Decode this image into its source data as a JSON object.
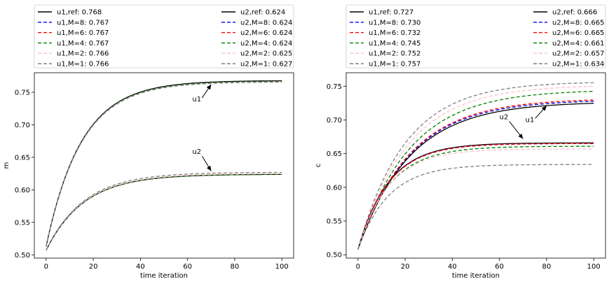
{
  "chart_data": [
    {
      "type": "line",
      "panel": "left",
      "title": "",
      "xlabel": "time iteration",
      "ylabel": "m",
      "xlim": [
        -5,
        105
      ],
      "ylim": [
        0.495,
        0.78
      ],
      "xticks": [
        0,
        20,
        40,
        60,
        80,
        100
      ],
      "yticks": [
        0.5,
        0.55,
        0.6,
        0.65,
        0.7,
        0.75
      ],
      "ytick_labels": [
        "0.50",
        "0.55",
        "0.60",
        "0.65",
        "0.70",
        "0.75"
      ],
      "legend_placement": "above",
      "series": [
        {
          "name": "u1,ref",
          "legend": "u1,ref: 0.768",
          "color": "#000000",
          "dash": "solid",
          "start": 0.513,
          "final": 0.768,
          "tau": 15
        },
        {
          "name": "u1,M=8",
          "legend": "u1,M=8: 0.767",
          "color": "#0000ff",
          "dash": "dashed",
          "start": 0.513,
          "final": 0.767,
          "tau": 15
        },
        {
          "name": "u1,M=6",
          "legend": "u1,M=6: 0.767",
          "color": "#ff0000",
          "dash": "dashed",
          "start": 0.513,
          "final": 0.767,
          "tau": 15
        },
        {
          "name": "u1,M=4",
          "legend": "u1,M=4: 0.767",
          "color": "#008000",
          "dash": "dashed",
          "start": 0.513,
          "final": 0.767,
          "tau": 15
        },
        {
          "name": "u1,M=2",
          "legend": "u1,M=2: 0.766",
          "color": "#ffc0cb",
          "dash": "dashed",
          "start": 0.513,
          "final": 0.766,
          "tau": 15
        },
        {
          "name": "u1,M=1",
          "legend": "u1,M=1: 0.766",
          "color": "#808080",
          "dash": "dashed",
          "start": 0.513,
          "final": 0.766,
          "tau": 15
        },
        {
          "name": "u2,ref",
          "legend": "u2,ref: 0.624",
          "color": "#000000",
          "dash": "solid",
          "start": 0.507,
          "final": 0.624,
          "tau": 16
        },
        {
          "name": "u2,M=8",
          "legend": "u2,M=8: 0.624",
          "color": "#0000ff",
          "dash": "dashed",
          "start": 0.507,
          "final": 0.624,
          "tau": 16
        },
        {
          "name": "u2,M=6",
          "legend": "u2,M=6: 0.624",
          "color": "#ff0000",
          "dash": "dashed",
          "start": 0.507,
          "final": 0.624,
          "tau": 16
        },
        {
          "name": "u2,M=4",
          "legend": "u2,M=4: 0.624",
          "color": "#008000",
          "dash": "dashed",
          "start": 0.507,
          "final": 0.624,
          "tau": 16
        },
        {
          "name": "u2,M=2",
          "legend": "u2,M=2: 0.625",
          "color": "#ffc0cb",
          "dash": "dashed",
          "start": 0.507,
          "final": 0.625,
          "tau": 16
        },
        {
          "name": "u2,M=1",
          "legend": "u2,M=1: 0.627",
          "color": "#808080",
          "dash": "dashed",
          "start": 0.507,
          "final": 0.627,
          "tau": 16
        }
      ],
      "annotations": [
        {
          "text": "u1",
          "text_xy": [
            62,
            0.736
          ],
          "arrow_to": [
            70,
            0.762
          ]
        },
        {
          "text": "u2",
          "text_xy": [
            62,
            0.655
          ],
          "arrow_to": [
            70,
            0.629
          ]
        }
      ]
    },
    {
      "type": "line",
      "panel": "right",
      "title": "",
      "xlabel": "time iteration",
      "ylabel": "c",
      "xlim": [
        -5,
        105
      ],
      "ylim": [
        0.495,
        0.77
      ],
      "xticks": [
        0,
        20,
        40,
        60,
        80,
        100
      ],
      "yticks": [
        0.5,
        0.55,
        0.6,
        0.65,
        0.7,
        0.75
      ],
      "ytick_labels": [
        "0.50",
        "0.55",
        "0.60",
        "0.65",
        "0.70",
        "0.75"
      ],
      "legend_placement": "above",
      "series": [
        {
          "name": "u1,ref",
          "legend": "u1,ref: 0.727",
          "color": "#000000",
          "dash": "solid",
          "start": 0.508,
          "final": 0.727,
          "tau": 22
        },
        {
          "name": "u1,M=8",
          "legend": "u1,M=8: 0.730",
          "color": "#0000ff",
          "dash": "dashed",
          "start": 0.508,
          "final": 0.73,
          "tau": 22
        },
        {
          "name": "u1,M=6",
          "legend": "u1,M=6: 0.732",
          "color": "#ff0000",
          "dash": "dashed",
          "start": 0.508,
          "final": 0.732,
          "tau": 22
        },
        {
          "name": "u1,M=4",
          "legend": "u1,M=4: 0.745",
          "color": "#008000",
          "dash": "dashed",
          "start": 0.508,
          "final": 0.745,
          "tau": 22
        },
        {
          "name": "u1,M=2",
          "legend": "u1,M=2: 0.752",
          "color": "#ffc0cb",
          "dash": "dashed",
          "start": 0.508,
          "final": 0.752,
          "tau": 21
        },
        {
          "name": "u1,M=1",
          "legend": "u1,M=1: 0.757",
          "color": "#808080",
          "dash": "dashed",
          "start": 0.508,
          "final": 0.757,
          "tau": 20
        },
        {
          "name": "u2,ref",
          "legend": "u2,ref: 0.666",
          "color": "#000000",
          "dash": "solid",
          "start": 0.508,
          "final": 0.666,
          "tau": 13
        },
        {
          "name": "u2,M=8",
          "legend": "u2,M=8: 0.665",
          "color": "#0000ff",
          "dash": "dashed",
          "start": 0.508,
          "final": 0.665,
          "tau": 13
        },
        {
          "name": "u2,M=6",
          "legend": "u2,M=6: 0.665",
          "color": "#ff0000",
          "dash": "dashed",
          "start": 0.508,
          "final": 0.665,
          "tau": 13
        },
        {
          "name": "u2,M=4",
          "legend": "u2,M=4: 0.661",
          "color": "#008000",
          "dash": "dashed",
          "start": 0.508,
          "final": 0.661,
          "tau": 13.5
        },
        {
          "name": "u2,M=2",
          "legend": "u2,M=2: 0.657",
          "color": "#ffc0cb",
          "dash": "dashed",
          "start": 0.508,
          "final": 0.657,
          "tau": 13
        },
        {
          "name": "u2,M=1",
          "legend": "u2,M=1: 0.634",
          "color": "#808080",
          "dash": "dashed",
          "start": 0.508,
          "final": 0.634,
          "tau": 13
        }
      ],
      "annotations": [
        {
          "text": "u2",
          "text_xy": [
            60,
            0.701
          ],
          "arrow_to": [
            70,
            0.672
          ]
        },
        {
          "text": "u1",
          "text_xy": [
            71,
            0.697
          ],
          "arrow_to": [
            80,
            0.721
          ]
        }
      ]
    }
  ]
}
